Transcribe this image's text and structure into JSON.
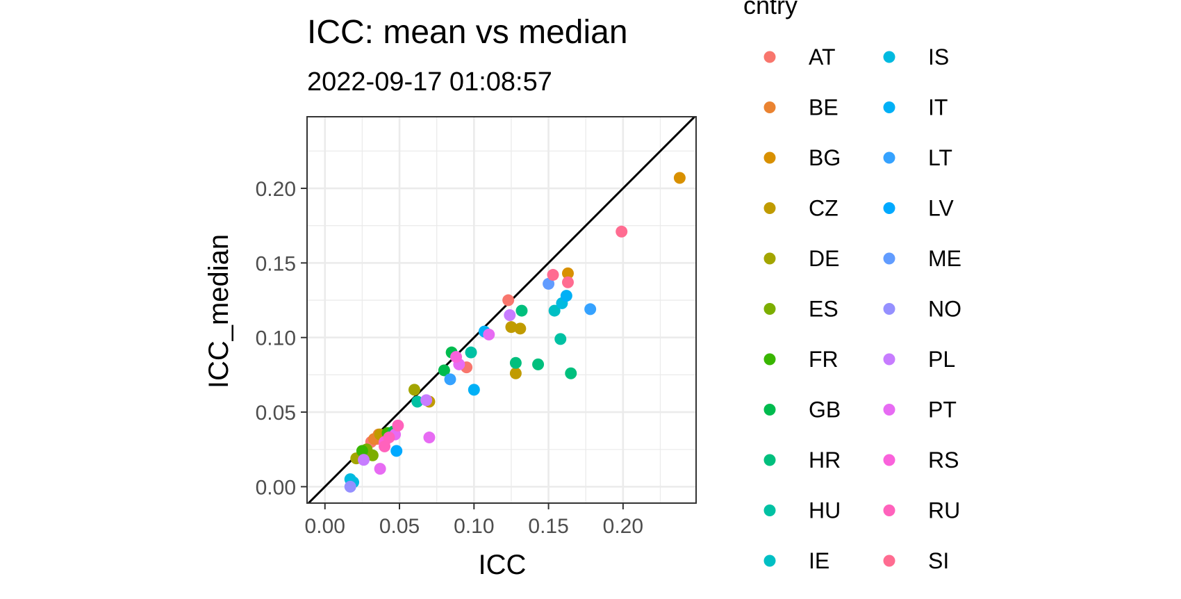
{
  "chart_data": {
    "type": "scatter",
    "title": "ICC: mean vs median",
    "subtitle": "2022-09-17 01:08:57",
    "xlabel": "ICC",
    "ylabel": "ICC_median",
    "xlim": [
      -0.012,
      0.249
    ],
    "ylim": [
      -0.011,
      0.248
    ],
    "x_ticks": [
      0.0,
      0.05,
      0.1,
      0.15,
      0.2
    ],
    "x_tick_labels": [
      "0.00",
      "0.05",
      "0.10",
      "0.15",
      "0.20"
    ],
    "y_ticks": [
      0.0,
      0.05,
      0.1,
      0.15,
      0.2
    ],
    "y_tick_labels": [
      "0.00",
      "0.05",
      "0.10",
      "0.15",
      "0.20"
    ],
    "grid": true,
    "reference_line": "y = x",
    "legend": {
      "title": "cntry",
      "placement": "right",
      "columns": 2
    },
    "series": [
      {
        "name": "AT",
        "color": "#F8766D",
        "points": [
          [
            0.123,
            0.125
          ],
          [
            0.095,
            0.08
          ],
          [
            0.035,
            0.032
          ],
          [
            0.031,
            0.03
          ]
        ]
      },
      {
        "name": "BE",
        "color": "#EA8331",
        "points": [
          [
            0.033,
            0.032
          ],
          [
            0.036,
            0.035
          ]
        ]
      },
      {
        "name": "BG",
        "color": "#D89000",
        "points": [
          [
            0.163,
            0.143
          ],
          [
            0.238,
            0.207
          ]
        ]
      },
      {
        "name": "CZ",
        "color": "#C09B00",
        "points": [
          [
            0.125,
            0.107
          ],
          [
            0.131,
            0.106
          ],
          [
            0.128,
            0.076
          ],
          [
            0.07,
            0.057
          ],
          [
            0.037,
            0.035
          ]
        ]
      },
      {
        "name": "DE",
        "color": "#A3A500",
        "points": [
          [
            0.021,
            0.019
          ],
          [
            0.06,
            0.065
          ]
        ]
      },
      {
        "name": "ES",
        "color": "#7CAE00",
        "points": [
          [
            0.032,
            0.021
          ],
          [
            0.028,
            0.025
          ]
        ]
      },
      {
        "name": "FR",
        "color": "#39B600",
        "points": [
          [
            0.025,
            0.024
          ],
          [
            0.042,
            0.036
          ]
        ]
      },
      {
        "name": "GB",
        "color": "#00BB4E",
        "points": [
          [
            0.046,
            0.037
          ],
          [
            0.085,
            0.09
          ],
          [
            0.08,
            0.078
          ]
        ]
      },
      {
        "name": "HR",
        "color": "#00BF7D",
        "points": [
          [
            0.132,
            0.118
          ],
          [
            0.143,
            0.082
          ],
          [
            0.165,
            0.076
          ],
          [
            0.128,
            0.083
          ]
        ]
      },
      {
        "name": "HU",
        "color": "#00C1A3",
        "points": [
          [
            0.158,
            0.099
          ],
          [
            0.062,
            0.057
          ],
          [
            0.098,
            0.09
          ]
        ]
      },
      {
        "name": "IE",
        "color": "#00BFC4",
        "points": [
          [
            0.154,
            0.118
          ]
        ]
      },
      {
        "name": "IS",
        "color": "#00BAE0",
        "points": [
          [
            0.017,
            0.005
          ],
          [
            0.019,
            0.003
          ],
          [
            0.159,
            0.123
          ]
        ]
      },
      {
        "name": "IT",
        "color": "#00B0F6",
        "points": [
          [
            0.1,
            0.065
          ],
          [
            0.107,
            0.104
          ],
          [
            0.162,
            0.128
          ]
        ]
      },
      {
        "name": "LT",
        "color": "#35A2FF",
        "points": [
          [
            0.084,
            0.072
          ],
          [
            0.178,
            0.119
          ]
        ]
      },
      {
        "name": "LV",
        "color": "#00A9FF",
        "points": [
          [
            0.048,
            0.024
          ]
        ]
      },
      {
        "name": "ME",
        "color": "#619CFF",
        "points": [
          [
            0.15,
            0.136
          ]
        ]
      },
      {
        "name": "NO",
        "color": "#9590FF",
        "points": [
          [
            0.017,
            0.0
          ]
        ]
      },
      {
        "name": "PL",
        "color": "#C77CFF",
        "points": [
          [
            0.124,
            0.115
          ],
          [
            0.068,
            0.058
          ],
          [
            0.026,
            0.018
          ]
        ]
      },
      {
        "name": "PT",
        "color": "#E76BF3",
        "points": [
          [
            0.11,
            0.102
          ],
          [
            0.09,
            0.082
          ],
          [
            0.07,
            0.033
          ],
          [
            0.037,
            0.012
          ],
          [
            0.047,
            0.035
          ]
        ]
      },
      {
        "name": "RS",
        "color": "#FA62DB",
        "points": [
          [
            0.088,
            0.087
          ],
          [
            0.04,
            0.03
          ]
        ]
      },
      {
        "name": "RU",
        "color": "#FF62BC",
        "points": [
          [
            0.049,
            0.041
          ],
          [
            0.04,
            0.027
          ],
          [
            0.043,
            0.033
          ]
        ]
      },
      {
        "name": "SI",
        "color": "#FF6C91",
        "points": [
          [
            0.199,
            0.171
          ],
          [
            0.153,
            0.142
          ],
          [
            0.163,
            0.137
          ]
        ]
      }
    ]
  }
}
